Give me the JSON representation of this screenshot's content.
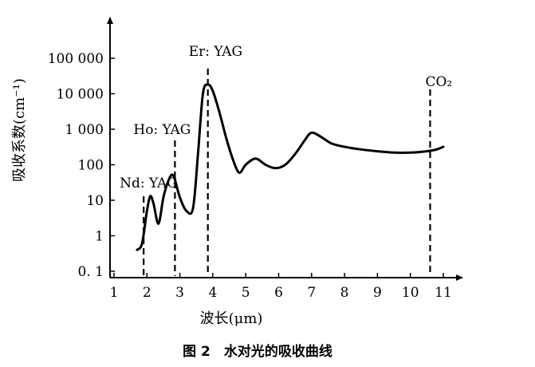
{
  "chart_data": {
    "type": "line",
    "title": "",
    "caption": "图 2　水对光的吸收曲线",
    "xlabel": "波长(μm)",
    "ylabel": "吸收系数(cm⁻¹)",
    "y_scale": "log",
    "xlim": [
      1,
      11
    ],
    "ylim": [
      0.1,
      100000
    ],
    "x_ticks": [
      1,
      2,
      3,
      4,
      5,
      6,
      7,
      8,
      9,
      10,
      11
    ],
    "x_tick_labels": [
      "1",
      "2",
      "3",
      "4",
      "5",
      "6",
      "7",
      "8",
      "9",
      "10",
      "11"
    ],
    "y_ticks": [
      0.1,
      1,
      10,
      100,
      1000,
      10000,
      100000
    ],
    "y_tick_labels": [
      "0. 1",
      "1",
      "10",
      "100",
      "1 000",
      "10 000",
      "100 000"
    ],
    "grid": false,
    "series": [
      {
        "x": [
          1.7,
          1.85,
          2.0,
          2.1,
          2.2,
          2.35,
          2.5,
          2.65,
          2.8,
          3.0,
          3.2,
          3.4,
          3.55,
          3.7,
          3.85,
          4.0,
          4.2,
          4.4,
          4.6,
          4.8,
          5.0,
          5.3,
          5.6,
          5.9,
          6.2,
          6.5,
          6.8,
          7.0,
          7.3,
          7.6,
          8.0,
          8.5,
          9.0,
          9.5,
          10.0,
          10.5,
          10.8,
          11.0
        ],
        "y": [
          0.4,
          0.6,
          5,
          13,
          8,
          2.2,
          12,
          35,
          50,
          12,
          5,
          6,
          200,
          10000,
          18000,
          12000,
          3000,
          600,
          150,
          60,
          100,
          150,
          100,
          80,
          100,
          200,
          500,
          800,
          600,
          400,
          320,
          270,
          240,
          220,
          220,
          240,
          270,
          320
        ]
      }
    ],
    "markers": [
      {
        "x": 1.9,
        "label": "Nd: YAG"
      },
      {
        "x": 2.85,
        "label": "Ho: YAG"
      },
      {
        "x": 3.85,
        "label": "Er: YAG"
      },
      {
        "x": 10.6,
        "label": "CO₂"
      }
    ]
  }
}
